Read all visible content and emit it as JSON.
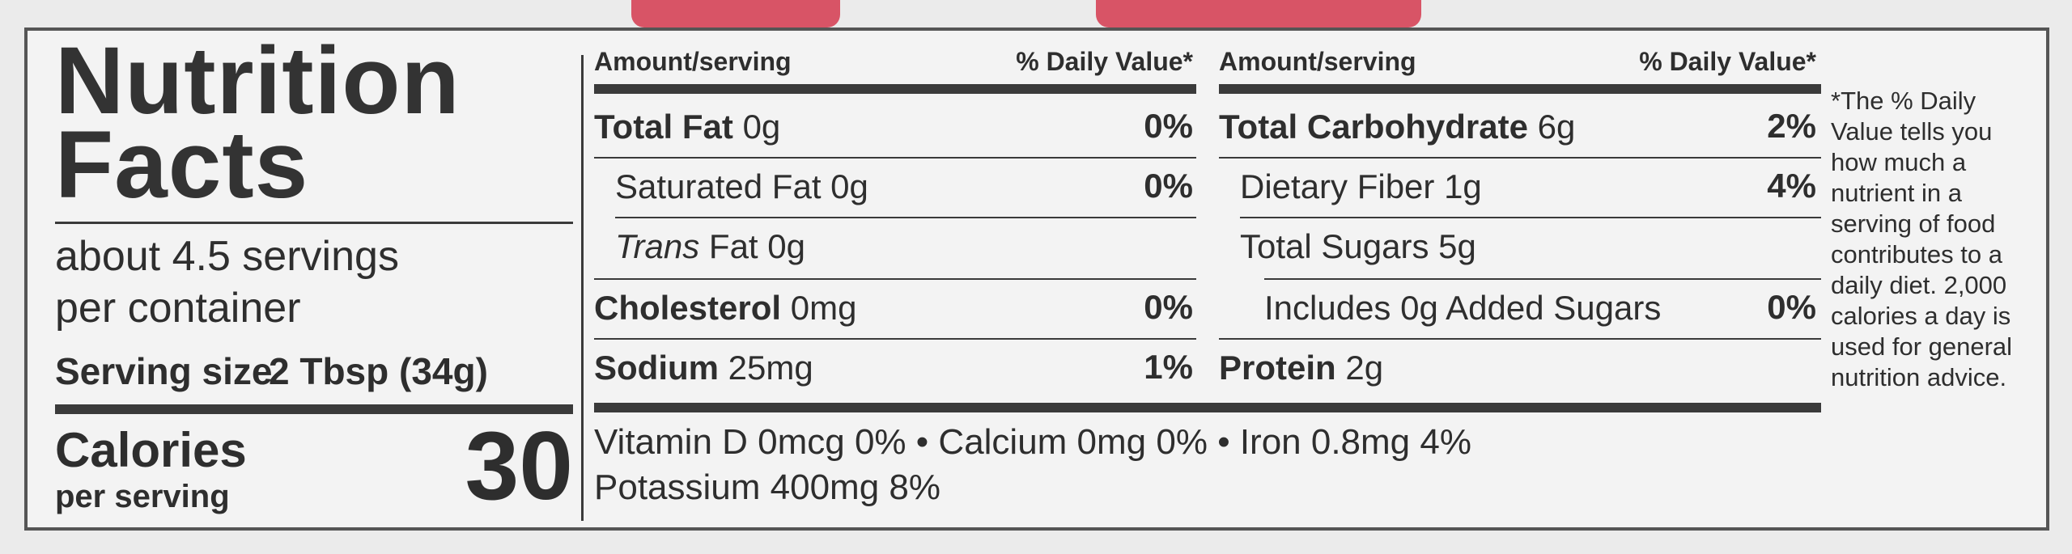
{
  "title_line1": "Nutrition",
  "title_line2": "Facts",
  "servings_line1": "about 4.5 servings",
  "servings_line2": "per container",
  "serving_size_label": "Serving size",
  "serving_size_value": "2 Tbsp (34g)",
  "calories_label": "Calories",
  "calories_sub": "per serving",
  "calories_value": "30",
  "left_table": {
    "header_amount": "Amount/serving",
    "header_dv": "% Daily Value*",
    "rows": [
      {
        "name": "Total Fat",
        "amount": "0g",
        "dv": "0%"
      },
      {
        "name": "Saturated Fat",
        "amount": "0g",
        "dv": "0%"
      },
      {
        "name": "Trans",
        "name_rest": "Fat",
        "amount": "0g",
        "dv": ""
      },
      {
        "name": "Cholesterol",
        "amount": "0mg",
        "dv": "0%"
      },
      {
        "name": "Sodium",
        "amount": "25mg",
        "dv": "1%"
      }
    ]
  },
  "right_table": {
    "header_amount": "Amount/serving",
    "header_dv": "% Daily Value*",
    "rows": [
      {
        "name": "Total Carbohydrate",
        "amount": "6g",
        "dv": "2%"
      },
      {
        "name": "Dietary Fiber",
        "amount": "1g",
        "dv": "4%"
      },
      {
        "name": "Total Sugars",
        "amount": "5g",
        "dv": ""
      },
      {
        "name": "Includes 0g Added Sugars",
        "amount": "",
        "dv": "0%"
      },
      {
        "name": "Protein",
        "amount": "2g",
        "dv": ""
      }
    ]
  },
  "vitamins_line1": "Vitamin D 0mcg 0% • Calcium 0mg 0% • Iron 0.8mg 4%",
  "vitamins_line2": "Potassium 400mg 8%",
  "footnote": "*The % Daily Value tells you how much a nutrient in a serving of food contributes to a daily diet. 2,000 calories a day is used for general nutrition advice.",
  "colors": {
    "tab": "#d85466",
    "ink": "#2e2e2e",
    "panel": "#f3f3f3",
    "background": "#ebebeb"
  }
}
